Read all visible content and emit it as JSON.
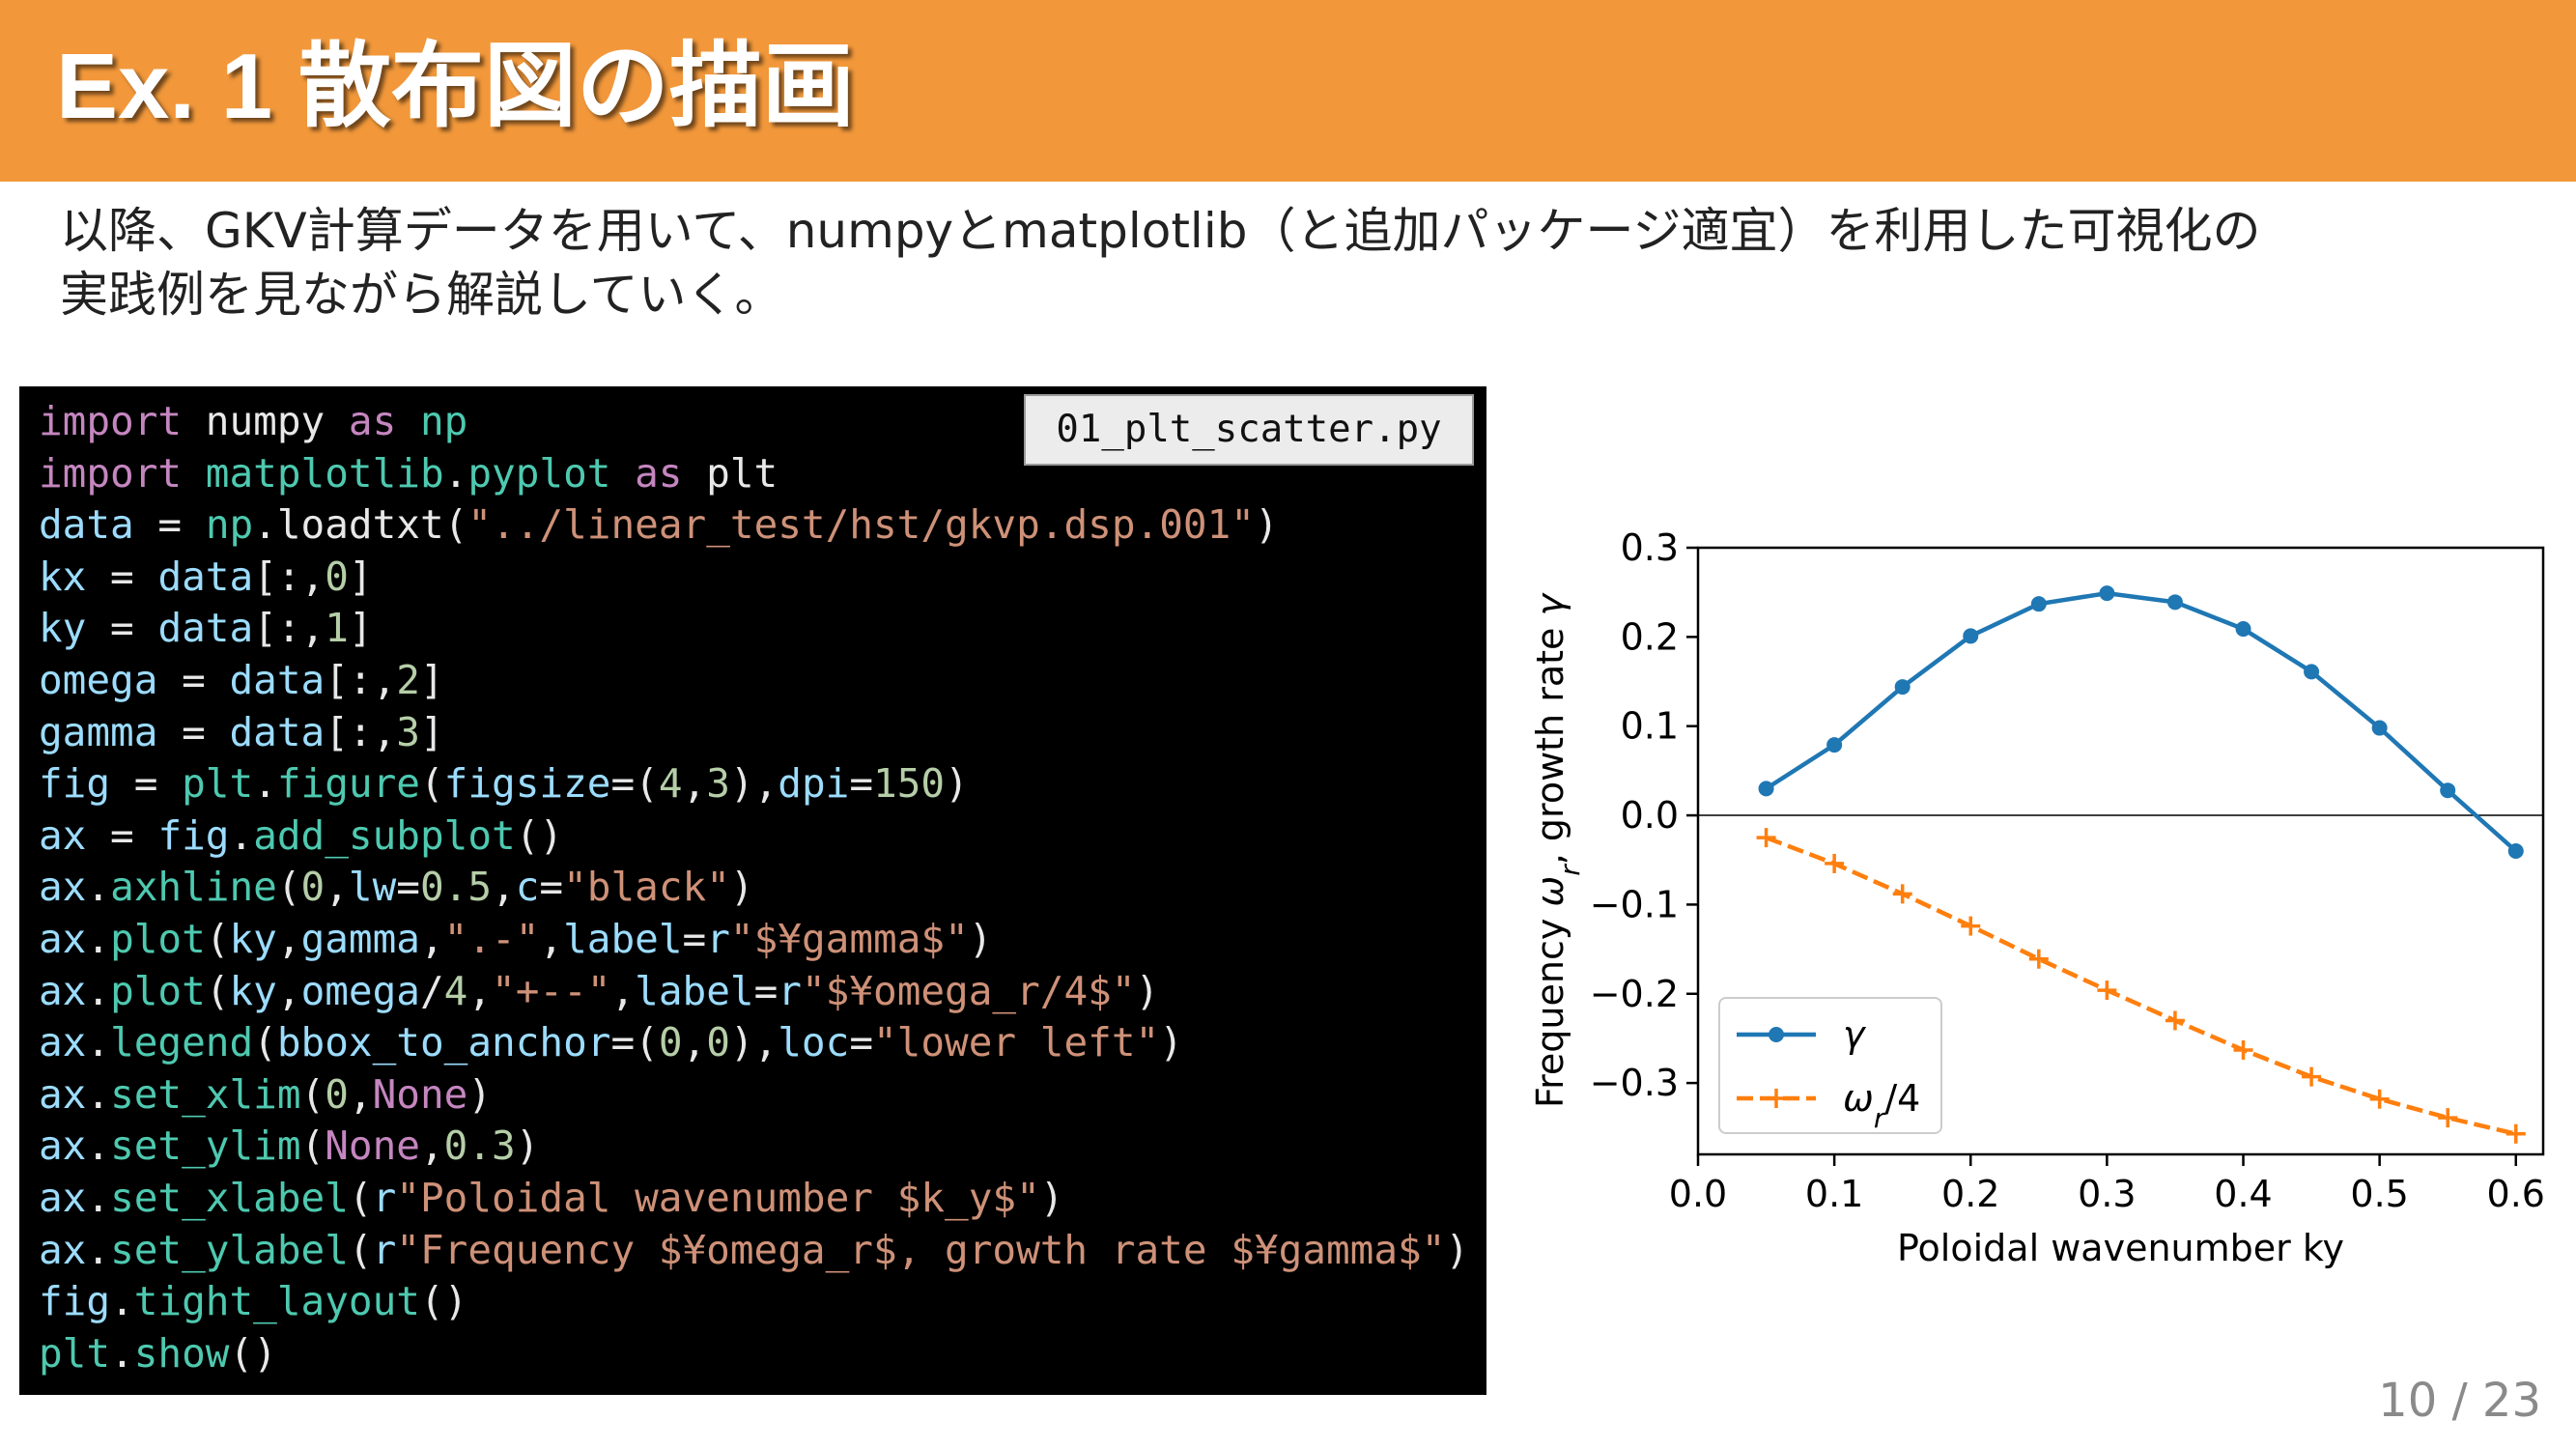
{
  "slide": {
    "title": "Ex. 1 散布図の描画",
    "intro_line1": "以降、GKV計算データを用いて、numpyとmatplotlib（と追加パッケージ適宜）を利用した可視化の",
    "intro_line2": "実践例を見ながら解説していく。",
    "page_number": "10 / 23"
  },
  "code": {
    "filename": "01_plt_scatter.py",
    "lines": [
      [
        [
          "kw",
          "import"
        ],
        [
          "pn",
          " numpy "
        ],
        [
          "kw",
          "as"
        ],
        [
          "pn",
          " "
        ],
        [
          "fn",
          "np"
        ]
      ],
      [
        [
          "kw",
          "import"
        ],
        [
          "pn",
          " "
        ],
        [
          "fn",
          "matplotlib"
        ],
        [
          "pn",
          "."
        ],
        [
          "fn",
          "pyplot"
        ],
        [
          "pn",
          " "
        ],
        [
          "kw",
          "as"
        ],
        [
          "pn",
          " plt"
        ]
      ],
      [
        [
          "vr",
          "data"
        ],
        [
          "pn",
          " = "
        ],
        [
          "fn",
          "np"
        ],
        [
          "pn",
          ".loadtxt("
        ],
        [
          "st",
          "\"../linear_test/hst/gkvp.dsp.001\""
        ],
        [
          "pn",
          ")"
        ]
      ],
      [
        [
          "vr",
          "kx"
        ],
        [
          "pn",
          " = "
        ],
        [
          "vr",
          "data"
        ],
        [
          "pn",
          "[:,"
        ],
        [
          "nm",
          "0"
        ],
        [
          "pn",
          "]"
        ]
      ],
      [
        [
          "vr",
          "ky"
        ],
        [
          "pn",
          " = "
        ],
        [
          "vr",
          "data"
        ],
        [
          "pn",
          "[:,"
        ],
        [
          "nm",
          "1"
        ],
        [
          "pn",
          "]"
        ]
      ],
      [
        [
          "vr",
          "omega"
        ],
        [
          "pn",
          " = "
        ],
        [
          "vr",
          "data"
        ],
        [
          "pn",
          "[:,"
        ],
        [
          "nm",
          "2"
        ],
        [
          "pn",
          "]"
        ]
      ],
      [
        [
          "vr",
          "gamma"
        ],
        [
          "pn",
          " = "
        ],
        [
          "vr",
          "data"
        ],
        [
          "pn",
          "[:,"
        ],
        [
          "nm",
          "3"
        ],
        [
          "pn",
          "]"
        ]
      ],
      [
        [
          "vr",
          "fig"
        ],
        [
          "pn",
          " = "
        ],
        [
          "fn",
          "plt"
        ],
        [
          "pn",
          "."
        ],
        [
          "fn",
          "figure"
        ],
        [
          "pn",
          "("
        ],
        [
          "vr",
          "figsize"
        ],
        [
          "pn",
          "=("
        ],
        [
          "nm",
          "4"
        ],
        [
          "pn",
          ","
        ],
        [
          "nm",
          "3"
        ],
        [
          "pn",
          "),"
        ],
        [
          "vr",
          "dpi"
        ],
        [
          "pn",
          "="
        ],
        [
          "nm",
          "150"
        ],
        [
          "pn",
          ")"
        ]
      ],
      [
        [
          "vr",
          "ax"
        ],
        [
          "pn",
          " = "
        ],
        [
          "vr",
          "fig"
        ],
        [
          "pn",
          "."
        ],
        [
          "fn",
          "add_subplot"
        ],
        [
          "pn",
          "()"
        ]
      ],
      [
        [
          "vr",
          "ax"
        ],
        [
          "pn",
          "."
        ],
        [
          "fn",
          "axhline"
        ],
        [
          "pn",
          "("
        ],
        [
          "nm",
          "0"
        ],
        [
          "pn",
          ","
        ],
        [
          "vr",
          "lw"
        ],
        [
          "pn",
          "="
        ],
        [
          "nm",
          "0.5"
        ],
        [
          "pn",
          ","
        ],
        [
          "vr",
          "c"
        ],
        [
          "pn",
          "="
        ],
        [
          "st",
          "\"black\""
        ],
        [
          "pn",
          ")"
        ]
      ],
      [
        [
          "vr",
          "ax"
        ],
        [
          "pn",
          "."
        ],
        [
          "fn",
          "plot"
        ],
        [
          "pn",
          "("
        ],
        [
          "vr",
          "ky"
        ],
        [
          "pn",
          ","
        ],
        [
          "vr",
          "gamma"
        ],
        [
          "pn",
          ","
        ],
        [
          "st",
          "\".-\""
        ],
        [
          "pn",
          ","
        ],
        [
          "vr",
          "label"
        ],
        [
          "pn",
          "="
        ],
        [
          "vr",
          "r"
        ],
        [
          "st",
          "\"$¥gamma$\""
        ],
        [
          "pn",
          ")"
        ]
      ],
      [
        [
          "vr",
          "ax"
        ],
        [
          "pn",
          "."
        ],
        [
          "fn",
          "plot"
        ],
        [
          "pn",
          "("
        ],
        [
          "vr",
          "ky"
        ],
        [
          "pn",
          ","
        ],
        [
          "vr",
          "omega"
        ],
        [
          "pn",
          "/"
        ],
        [
          "nm",
          "4"
        ],
        [
          "pn",
          ","
        ],
        [
          "st",
          "\"+--\""
        ],
        [
          "pn",
          ","
        ],
        [
          "vr",
          "label"
        ],
        [
          "pn",
          "="
        ],
        [
          "vr",
          "r"
        ],
        [
          "st",
          "\"$¥omega_r/4$\""
        ],
        [
          "pn",
          ")"
        ]
      ],
      [
        [
          "vr",
          "ax"
        ],
        [
          "pn",
          "."
        ],
        [
          "fn",
          "legend"
        ],
        [
          "pn",
          "("
        ],
        [
          "vr",
          "bbox_to_anchor"
        ],
        [
          "pn",
          "=("
        ],
        [
          "nm",
          "0"
        ],
        [
          "pn",
          ","
        ],
        [
          "nm",
          "0"
        ],
        [
          "pn",
          "),"
        ],
        [
          "vr",
          "loc"
        ],
        [
          "pn",
          "="
        ],
        [
          "st",
          "\"lower left\""
        ],
        [
          "pn",
          ")"
        ]
      ],
      [
        [
          "vr",
          "ax"
        ],
        [
          "pn",
          "."
        ],
        [
          "fn",
          "set_xlim"
        ],
        [
          "pn",
          "("
        ],
        [
          "nm",
          "0"
        ],
        [
          "pn",
          ","
        ],
        [
          "kw",
          "None"
        ],
        [
          "pn",
          ")"
        ]
      ],
      [
        [
          "vr",
          "ax"
        ],
        [
          "pn",
          "."
        ],
        [
          "fn",
          "set_ylim"
        ],
        [
          "pn",
          "("
        ],
        [
          "kw",
          "None"
        ],
        [
          "pn",
          ","
        ],
        [
          "nm",
          "0.3"
        ],
        [
          "pn",
          ")"
        ]
      ],
      [
        [
          "vr",
          "ax"
        ],
        [
          "pn",
          "."
        ],
        [
          "fn",
          "set_xlabel"
        ],
        [
          "pn",
          "("
        ],
        [
          "vr",
          "r"
        ],
        [
          "st",
          "\"Poloidal wavenumber $k_y$\""
        ],
        [
          "pn",
          ")"
        ]
      ],
      [
        [
          "vr",
          "ax"
        ],
        [
          "pn",
          "."
        ],
        [
          "fn",
          "set_ylabel"
        ],
        [
          "pn",
          "("
        ],
        [
          "vr",
          "r"
        ],
        [
          "st",
          "\"Frequency $¥omega_r$, growth rate $¥gamma$\""
        ],
        [
          "pn",
          ")"
        ]
      ],
      [
        [
          "vr",
          "fig"
        ],
        [
          "pn",
          "."
        ],
        [
          "fn",
          "tight_layout"
        ],
        [
          "pn",
          "()"
        ]
      ],
      [
        [
          "fn",
          "plt"
        ],
        [
          "pn",
          "."
        ],
        [
          "fn",
          "show"
        ],
        [
          "pn",
          "()"
        ]
      ]
    ]
  },
  "chart_data": {
    "type": "line",
    "xlabel": "Poloidal wavenumber k_y",
    "ylabel": "Frequency ω_r, growth rate γ",
    "xlim": [
      0.0,
      0.62
    ],
    "ylim": [
      -0.38,
      0.3
    ],
    "xticks": [
      "0.0",
      "0.1",
      "0.2",
      "0.3",
      "0.4",
      "0.5",
      "0.6"
    ],
    "yticks": [
      "0.3",
      "0.2",
      "0.1",
      "0.0",
      "−0.1",
      "−0.2",
      "−0.3"
    ],
    "grid": false,
    "legend_position": "lower-left",
    "series": [
      {
        "name": "γ",
        "color": "#1f77b4",
        "style": "solid-dot",
        "x": [
          0.05,
          0.1,
          0.15,
          0.2,
          0.25,
          0.3,
          0.35,
          0.4,
          0.45,
          0.5,
          0.55,
          0.6
        ],
        "y": [
          0.03,
          0.079,
          0.144,
          0.201,
          0.237,
          0.249,
          0.239,
          0.209,
          0.161,
          0.098,
          0.028,
          -0.04
        ]
      },
      {
        "name": "ω_r/4",
        "color": "#ff7f0e",
        "style": "dashed-plus",
        "x": [
          0.05,
          0.1,
          0.15,
          0.2,
          0.25,
          0.3,
          0.35,
          0.4,
          0.45,
          0.5,
          0.55,
          0.6
        ],
        "y": [
          -0.025,
          -0.054,
          -0.088,
          -0.124,
          -0.161,
          -0.196,
          -0.23,
          -0.263,
          -0.293,
          -0.318,
          -0.339,
          -0.357
        ]
      }
    ]
  }
}
